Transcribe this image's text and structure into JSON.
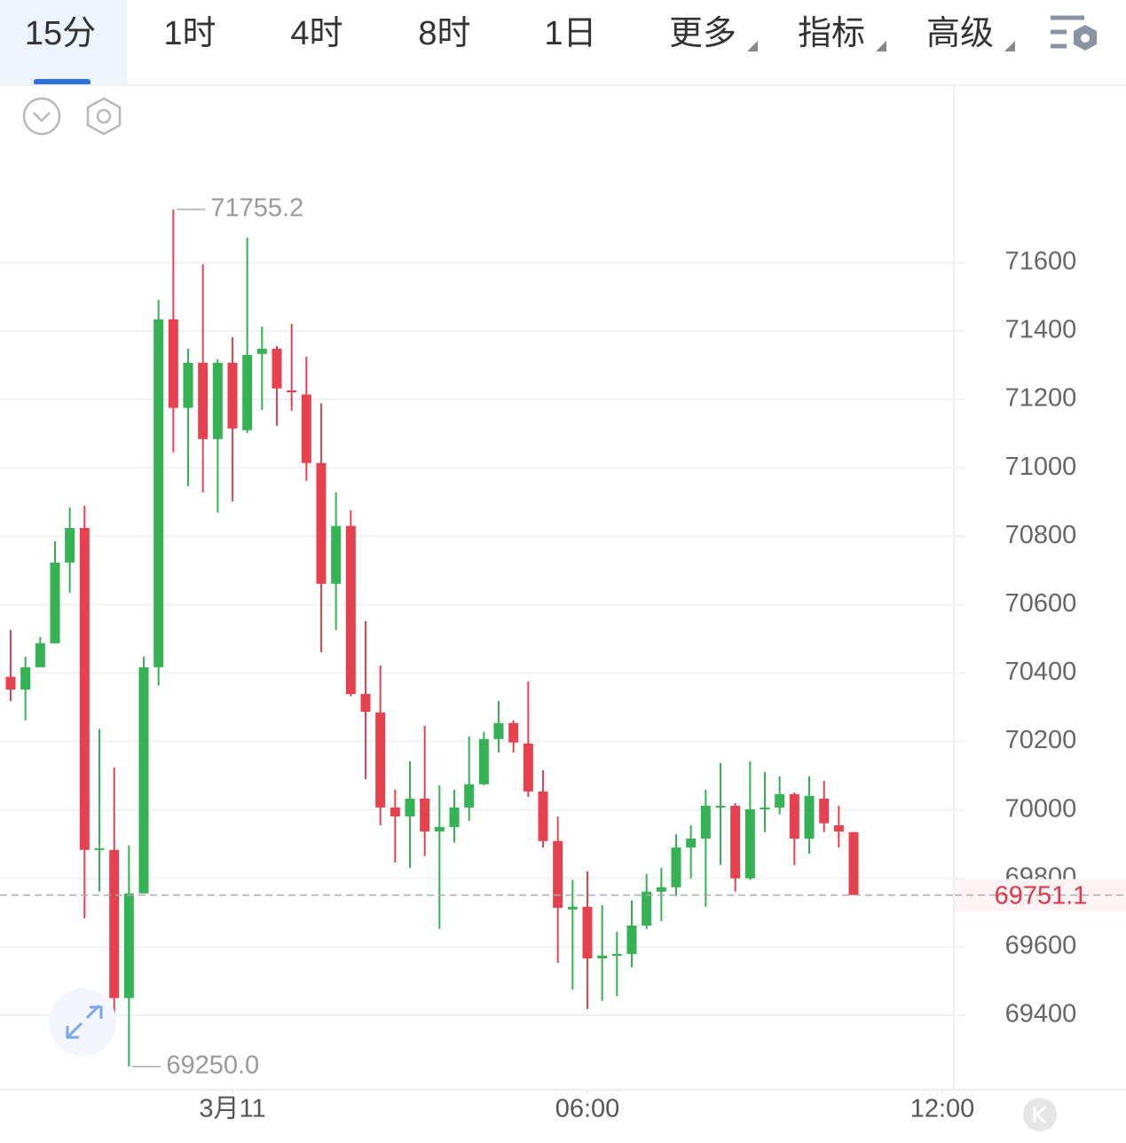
{
  "toolbar": {
    "tabs": [
      "15分",
      "1时",
      "4时",
      "8时",
      "1日",
      "更多",
      "指标",
      "高级"
    ]
  },
  "chart_data": {
    "type": "candlestick",
    "open": [
      70389,
      70352,
      70417,
      70487,
      70723,
      70824,
      69883,
      69883,
      69450,
      69756,
      70417,
      71434,
      71175,
      71307,
      71084,
      71307,
      71110,
      71333,
      71348,
      71226,
      71214,
      71014,
      70661,
      70830,
      70339,
      70285,
      70007,
      69981,
      70033,
      69937,
      69950,
      70007,
      70075,
      70207,
      70254,
      70194,
      70054,
      69909,
      69709,
      69717,
      69566,
      69574,
      69579,
      69662,
      69761,
      69774,
      69890,
      69916,
      70007,
      70012,
      69800,
      70002,
      70007,
      70046,
      69916,
      70033,
      69955,
      69935
    ],
    "high": [
      70526,
      70448,
      70505,
      70785,
      70884,
      70889,
      70236,
      70124,
      69896,
      70448,
      71491,
      71755.2,
      71348,
      71595,
      71317,
      71382,
      71673,
      71413,
      71356,
      71421,
      71325,
      71188,
      70928,
      70876,
      70552,
      70422,
      70059,
      70142,
      70246,
      70072,
      70059,
      70215,
      70228,
      70318,
      70262,
      70376,
      70116,
      69981,
      69795,
      69820,
      69722,
      69644,
      69735,
      69813,
      69831,
      69929,
      69955,
      70059,
      70137,
      70020,
      70142,
      70111,
      70098,
      70051,
      70098,
      70085,
      70012,
      69935
    ],
    "low": [
      70318,
      70262,
      70417,
      70487,
      70635,
      69683,
      69761,
      69385,
      69250,
      69756,
      70363,
      71045,
      70946,
      70928,
      70869,
      70902,
      71102,
      71169,
      71123,
      71167,
      70962,
      70461,
      70526,
      70332,
      70090,
      69955,
      69846,
      69831,
      69865,
      69652,
      69904,
      69968,
      70072,
      70168,
      70168,
      70038,
      69890,
      69553,
      69475,
      69418,
      69442,
      69455,
      69540,
      69652,
      69675,
      69748,
      69800,
      69717,
      69839,
      69761,
      69795,
      69935,
      69987,
      69839,
      69872,
      69935,
      69890,
      69751.1
    ],
    "close": [
      70352,
      70417,
      70487,
      70723,
      70824,
      69883,
      69888,
      69450,
      69756,
      70417,
      71434,
      71175,
      71307,
      71084,
      71307,
      71115,
      71330,
      71348,
      71232,
      71221,
      71014,
      70661,
      70830,
      70339,
      70287,
      70007,
      69981,
      70033,
      69937,
      69950,
      70007,
      70075,
      70207,
      70254,
      70197,
      70054,
      69909,
      69714,
      69717,
      69566,
      69574,
      69579,
      69662,
      69761,
      69774,
      69890,
      69916,
      70012,
      70012,
      69800,
      70002,
      70007,
      70046,
      69916,
      70041,
      69961,
      69937,
      69751.1
    ],
    "up_color": "#34b254",
    "down_color": "#e5414f",
    "xlim": [
      -0.72,
      63.78
    ],
    "xticks": [
      {
        "value": 15,
        "label": "3月11"
      },
      {
        "value": 39,
        "label": "06:00"
      },
      {
        "value": 63,
        "label": "12:00"
      }
    ],
    "ylim": [
      69182,
      72108
    ],
    "yticks": [
      69400,
      69600,
      69800,
      70000,
      70200,
      70400,
      70600,
      70800,
      71000,
      71200,
      71400,
      71600
    ],
    "grid": true,
    "high_label": 71755.2,
    "low_label": {
      "value": 69250,
      "label": "69250.0"
    },
    "last_price": 69751.1
  }
}
